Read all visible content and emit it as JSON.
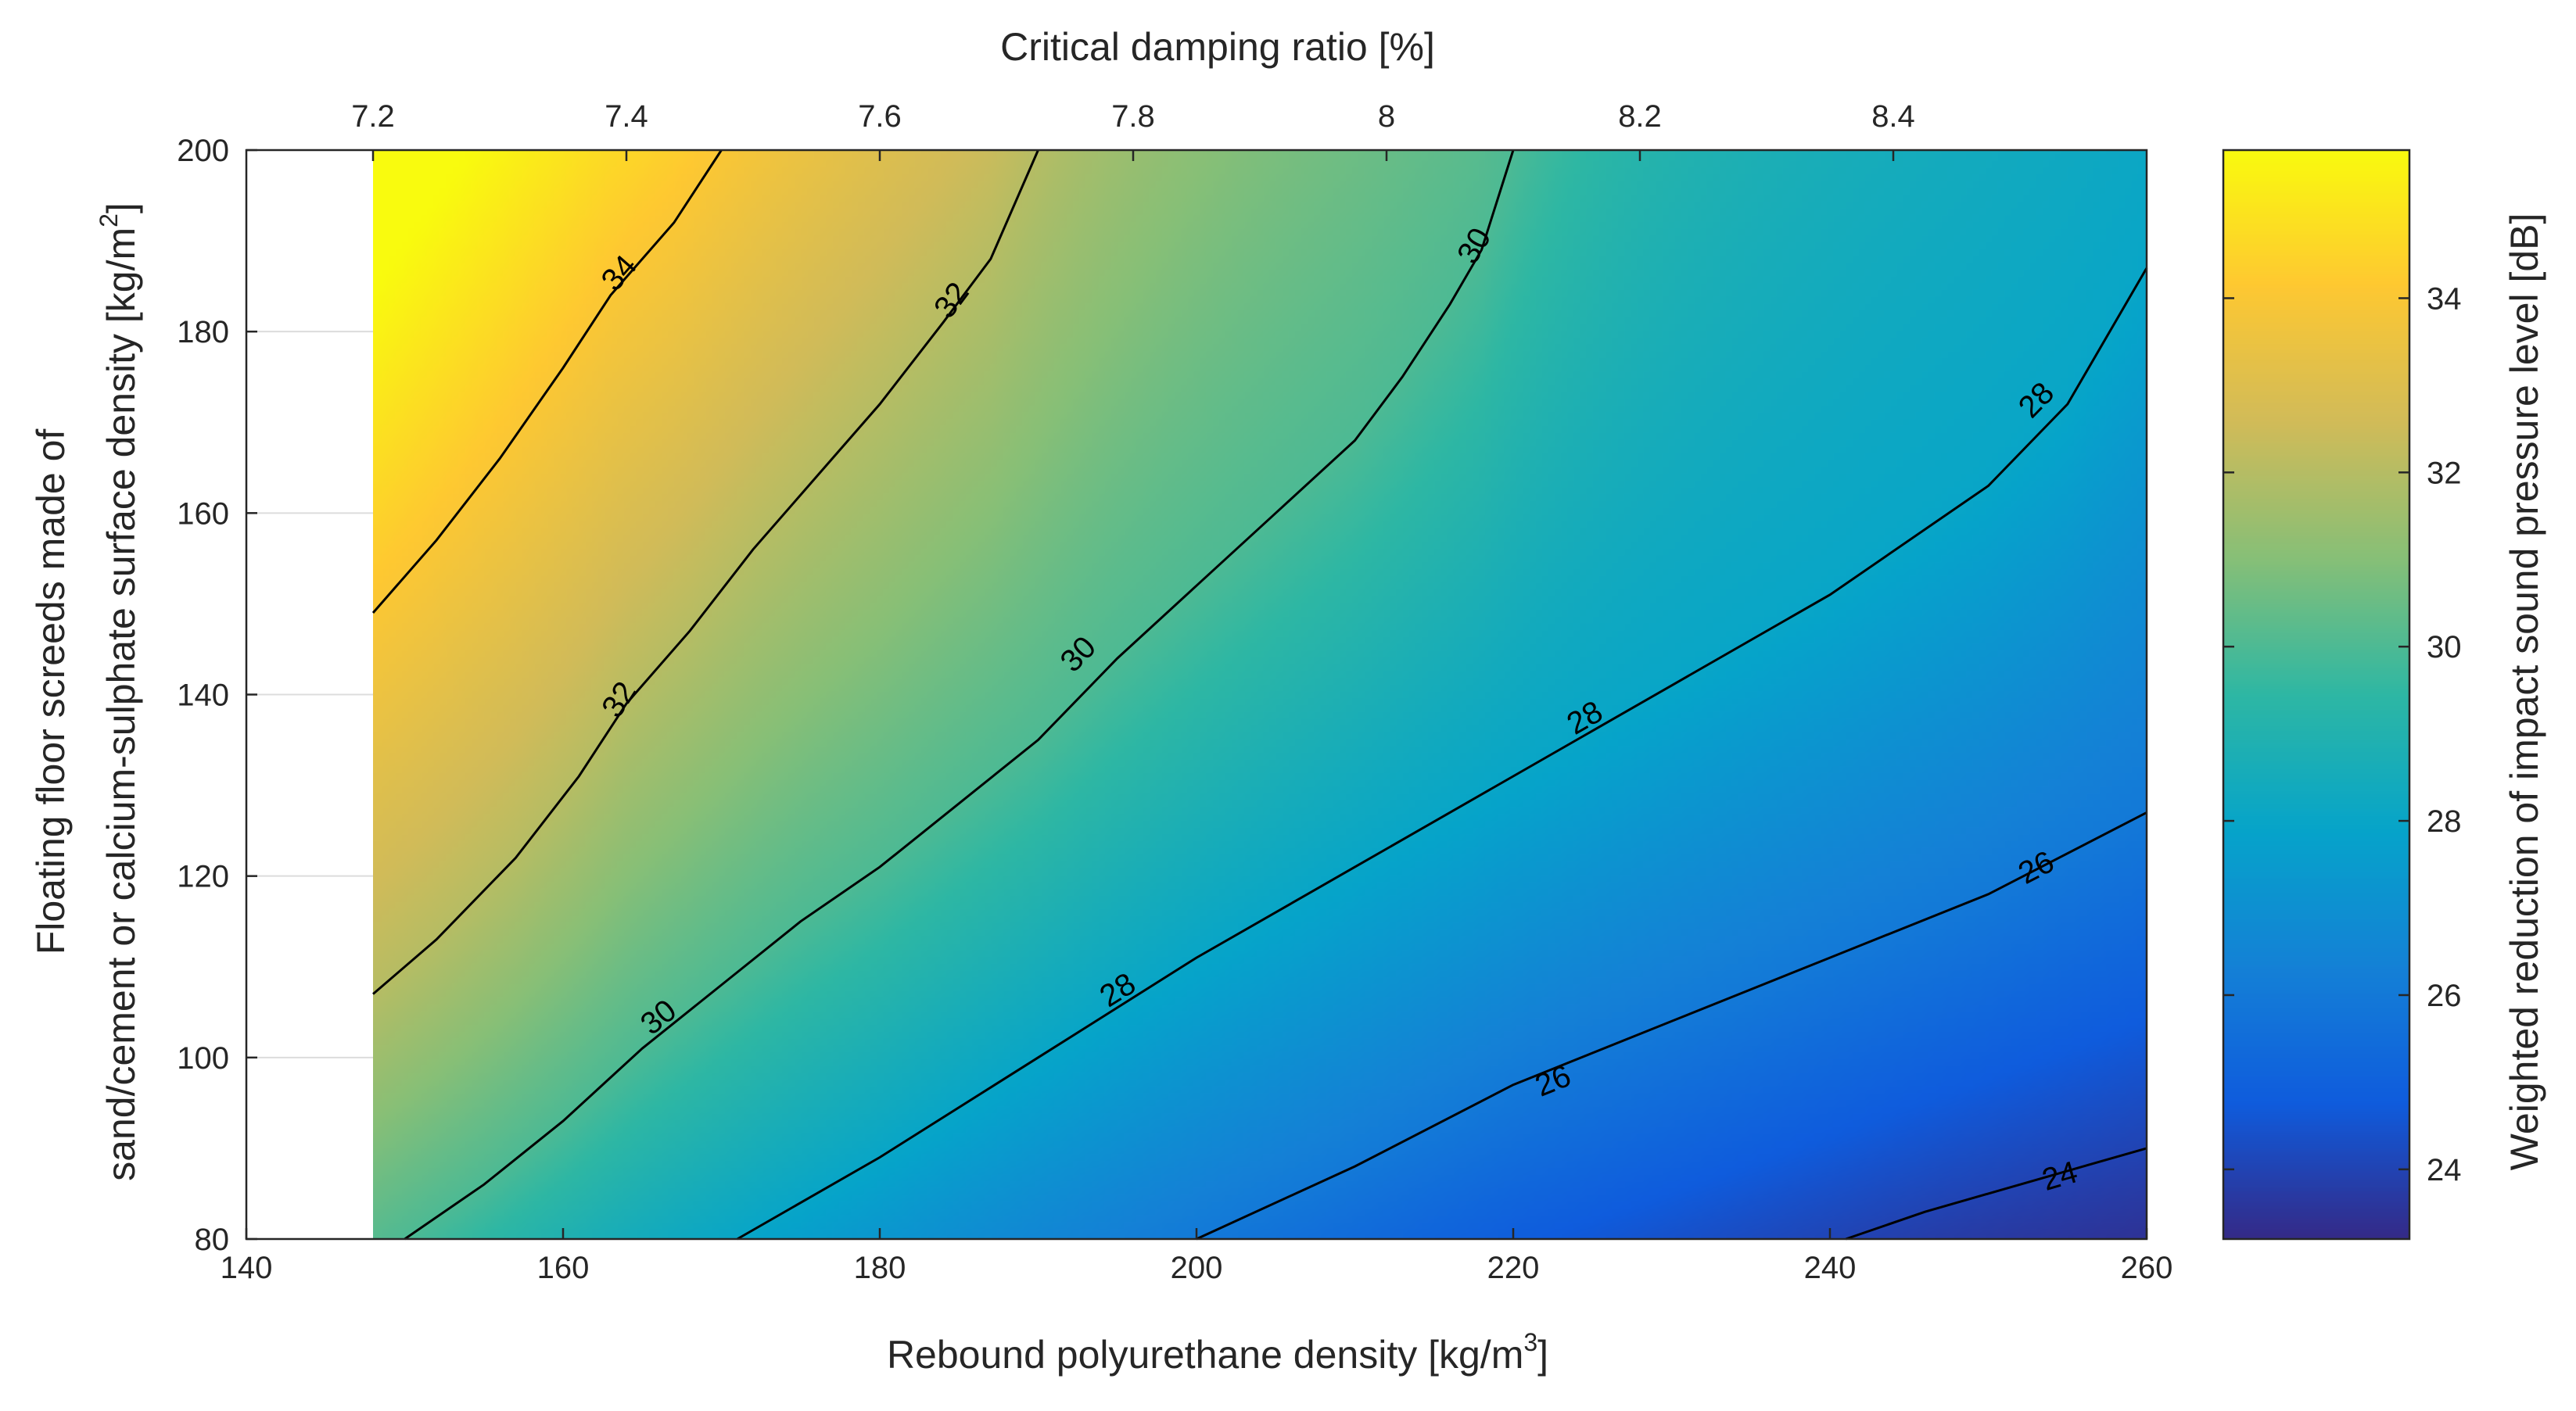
{
  "chart_data": {
    "type": "heatmap",
    "subtype": "filled-contour",
    "xlabel": "Rebound polyurethane density [kg/m",
    "xlabel_sup": "3",
    "xlabel_end": "]",
    "x2label": "Critical damping ratio [%]",
    "ylabel_line1": "Floating floor screeds made of",
    "ylabel_line2": "sand/cement or calcium-sulphate surface density [kg/m",
    "ylabel_sup": "2",
    "ylabel_end": "]",
    "colorbar_label": "Weighted reduction of impact sound pressure level [dB]",
    "xlim": [
      140,
      260
    ],
    "ylim": [
      80,
      200
    ],
    "data_xlim": [
      148,
      260
    ],
    "x2lim": [
      7.1,
      8.6
    ],
    "clim": [
      23.2,
      35.7
    ],
    "x_ticks": [
      140,
      160,
      180,
      200,
      220,
      240,
      260
    ],
    "x_tick_labels": [
      "140",
      "160",
      "180",
      "200",
      "220",
      "240",
      "260"
    ],
    "y_ticks": [
      80,
      100,
      120,
      140,
      160,
      180,
      200
    ],
    "y_tick_labels": [
      "80",
      "100",
      "120",
      "140",
      "160",
      "180",
      "200"
    ],
    "x2_ticks": [
      7.2,
      7.4,
      7.6,
      7.8,
      8.0,
      8.2,
      8.4
    ],
    "x2_tick_labels": [
      "7.2",
      "7.4",
      "7.6",
      "7.8",
      "8",
      "8.2",
      "8.4"
    ],
    "colorbar_ticks": [
      24,
      26,
      28,
      30,
      32,
      34
    ],
    "colorbar_tick_labels": [
      "24",
      "26",
      "28",
      "30",
      "32",
      "34"
    ],
    "colormap": "parula",
    "colormap_stops": [
      "#352a87",
      "#0f5cdd",
      "#1481d6",
      "#06a4ca",
      "#2eb7a4",
      "#87bf77",
      "#d1bb59",
      "#fec832",
      "#f9fb0e"
    ],
    "grid": true,
    "contour_levels": [
      {
        "value": 34,
        "lines": [
          {
            "label": "34",
            "points": [
              [
                148,
                149
              ],
              [
                152,
                157
              ],
              [
                156,
                166
              ],
              [
                160,
                176
              ],
              [
                163,
                184
              ],
              [
                167,
                192
              ],
              [
                170,
                200
              ]
            ],
            "label_at": [
              163.5,
              186.5
            ]
          }
        ]
      },
      {
        "value": 32,
        "lines": [
          {
            "label": "32",
            "points": [
              [
                148,
                107
              ],
              [
                152,
                113
              ],
              [
                157,
                122
              ],
              [
                161,
                131
              ],
              [
                164,
                139
              ],
              [
                168,
                147
              ],
              [
                172,
                156
              ],
              [
                176,
                164
              ],
              [
                180,
                172
              ],
              [
                184,
                181
              ],
              [
                187,
                188
              ],
              [
                190,
                200
              ]
            ],
            "label_at": [
              184.5,
              183.5
            ]
          },
          {
            "label": "32",
            "points": [
              [
                148,
                107
              ],
              [
                152,
                113
              ],
              [
                157,
                122
              ],
              [
                161,
                131
              ],
              [
                164,
                139
              ],
              [
                168,
                147
              ],
              [
                172,
                156
              ],
              [
                176,
                164
              ],
              [
                180,
                172
              ],
              [
                184,
                181
              ],
              [
                187,
                188
              ],
              [
                190,
                200
              ]
            ],
            "label_at": [
              163.5,
              139.5
            ]
          }
        ]
      },
      {
        "value": 30,
        "lines": [
          {
            "label": "30",
            "points": [
              [
                150,
                80
              ],
              [
                155,
                86
              ],
              [
                160,
                93
              ],
              [
                165,
                101
              ],
              [
                170,
                108
              ],
              [
                175,
                115
              ],
              [
                180,
                121
              ],
              [
                185,
                128
              ],
              [
                190,
                135
              ],
              [
                195,
                144
              ],
              [
                200,
                152
              ],
              [
                205,
                160
              ],
              [
                210,
                168
              ],
              [
                213,
                175
              ],
              [
                216,
                183
              ],
              [
                218,
                189
              ],
              [
                220,
                200
              ]
            ],
            "label_at": [
              192.5,
              144.5
            ]
          },
          {
            "label": "30",
            "points": [
              [
                150,
                80
              ],
              [
                155,
                86
              ],
              [
                160,
                93
              ],
              [
                165,
                101
              ],
              [
                170,
                108
              ],
              [
                175,
                115
              ],
              [
                180,
                121
              ],
              [
                185,
                128
              ],
              [
                190,
                135
              ],
              [
                195,
                144
              ],
              [
                200,
                152
              ],
              [
                205,
                160
              ],
              [
                210,
                168
              ],
              [
                213,
                175
              ],
              [
                216,
                183
              ],
              [
                218,
                189
              ],
              [
                220,
                200
              ]
            ],
            "label_at": [
              217.5,
              189.5
            ]
          },
          {
            "label": "30",
            "points": [
              [
                150,
                80
              ],
              [
                155,
                86
              ],
              [
                160,
                93
              ],
              [
                165,
                101
              ],
              [
                170,
                108
              ],
              [
                175,
                115
              ],
              [
                180,
                121
              ],
              [
                185,
                128
              ],
              [
                190,
                135
              ],
              [
                195,
                144
              ],
              [
                200,
                152
              ],
              [
                205,
                160
              ],
              [
                210,
                168
              ],
              [
                213,
                175
              ],
              [
                216,
                183
              ],
              [
                218,
                189
              ],
              [
                220,
                200
              ]
            ],
            "label_at": [
              166.0,
              104.5
            ]
          }
        ]
      },
      {
        "value": 28,
        "lines": [
          {
            "label": "28",
            "points": [
              [
                171,
                80
              ],
              [
                180,
                89
              ],
              [
                190,
                100
              ],
              [
                200,
                111
              ],
              [
                210,
                121
              ],
              [
                220,
                131
              ],
              [
                230,
                141
              ],
              [
                240,
                151
              ],
              [
                250,
                163
              ],
              [
                255,
                172
              ],
              [
                260,
                187
              ]
            ],
            "label_at": [
              195.0,
              107.5
            ]
          },
          {
            "label": "28",
            "points": [
              [
                171,
                80
              ],
              [
                180,
                89
              ],
              [
                190,
                100
              ],
              [
                200,
                111
              ],
              [
                210,
                121
              ],
              [
                220,
                131
              ],
              [
                230,
                141
              ],
              [
                240,
                151
              ],
              [
                250,
                163
              ],
              [
                255,
                172
              ],
              [
                260,
                187
              ]
            ],
            "label_at": [
              224.5,
              137.5
            ]
          },
          {
            "label": "28",
            "points": [
              [
                171,
                80
              ],
              [
                180,
                89
              ],
              [
                190,
                100
              ],
              [
                200,
                111
              ],
              [
                210,
                121
              ],
              [
                220,
                131
              ],
              [
                230,
                141
              ],
              [
                240,
                151
              ],
              [
                250,
                163
              ],
              [
                255,
                172
              ],
              [
                260,
                187
              ]
            ],
            "label_at": [
              253.0,
              172.5
            ]
          }
        ]
      },
      {
        "value": 26,
        "lines": [
          {
            "label": "26",
            "points": [
              [
                200,
                80
              ],
              [
                210,
                88
              ],
              [
                220,
                97
              ],
              [
                230,
                104
              ],
              [
                240,
                111
              ],
              [
                250,
                118
              ],
              [
                260,
                127
              ]
            ],
            "label_at": [
              222.5,
              97.5
            ]
          },
          {
            "label": "26",
            "points": [
              [
                200,
                80
              ],
              [
                210,
                88
              ],
              [
                220,
                97
              ],
              [
                230,
                104
              ],
              [
                240,
                111
              ],
              [
                250,
                118
              ],
              [
                260,
                127
              ]
            ],
            "label_at": [
              253.0,
              121.0
            ]
          }
        ]
      },
      {
        "value": 24,
        "lines": [
          {
            "label": "24",
            "points": [
              [
                241,
                80
              ],
              [
                246,
                83
              ],
              [
                252,
                86
              ],
              [
                256,
                88
              ],
              [
                260,
                90
              ]
            ],
            "label_at": [
              254.5,
              87.0
            ]
          }
        ]
      }
    ]
  }
}
